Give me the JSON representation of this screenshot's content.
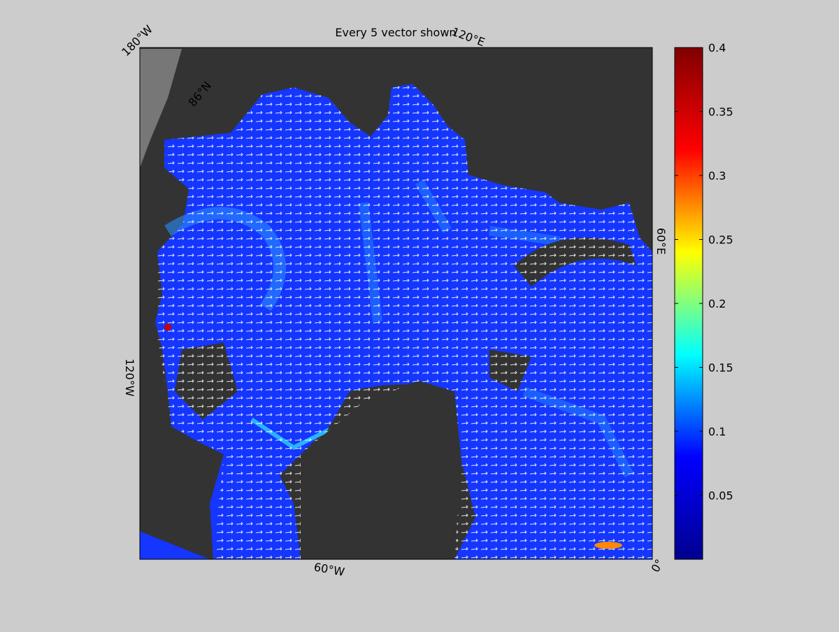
{
  "title": "Every 5 vector shown",
  "graticule_labels": [
    "180°W",
    "120°E",
    "60°E",
    "0°",
    "60°W",
    "120°W",
    "86°N"
  ],
  "colorbar": {
    "lim": [
      0,
      0.4
    ],
    "ticks": [
      0.05,
      0.1,
      0.15,
      0.2,
      0.25,
      0.3,
      0.35,
      0.4
    ],
    "colormap": [
      "#00008f",
      "#0000ff",
      "#00ffff",
      "#ffff00",
      "#ff0000",
      "#800000"
    ]
  }
}
